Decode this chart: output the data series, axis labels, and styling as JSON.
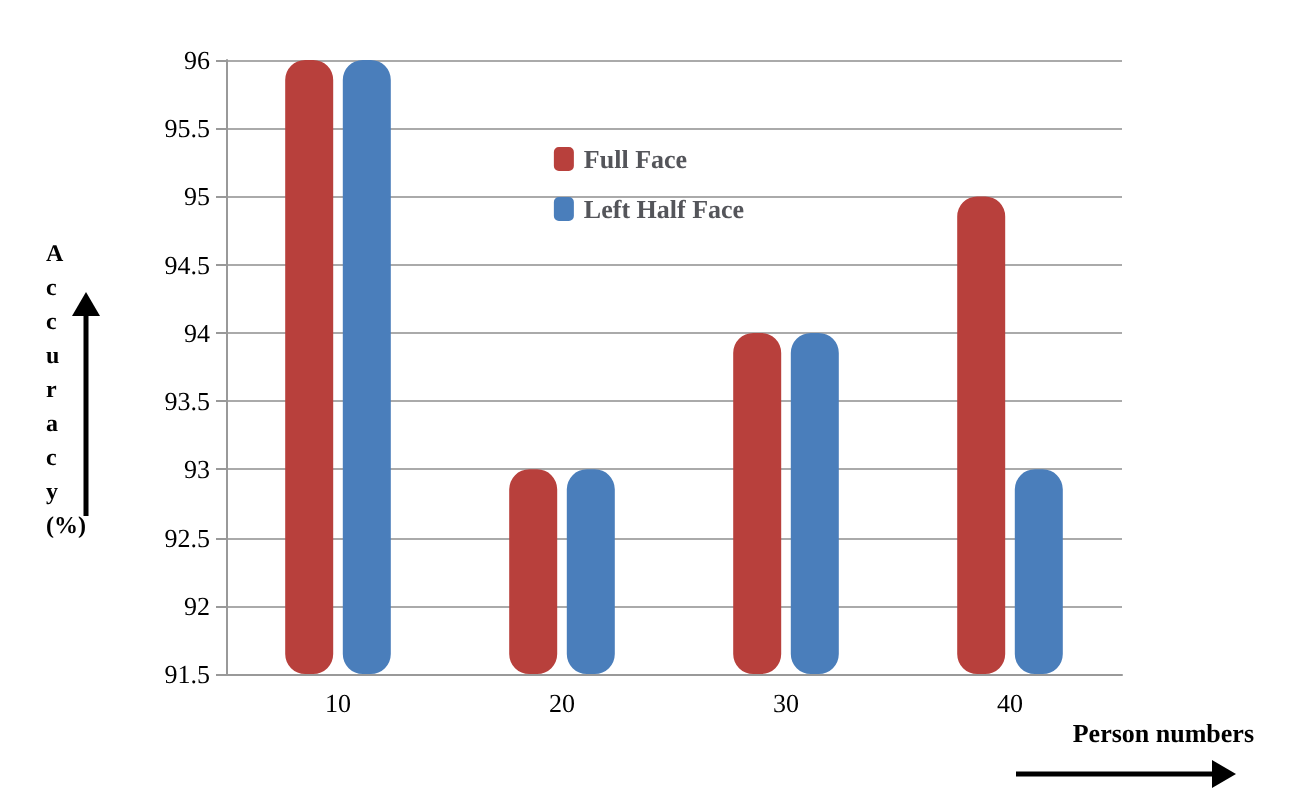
{
  "chart_data": {
    "type": "bar",
    "xlabel": "Person numbers",
    "ylabel": "Accuracy (%)",
    "categories": [
      "10",
      "20",
      "30",
      "40"
    ],
    "series": [
      {
        "name": "Full Face",
        "color": "#b8403c",
        "values": [
          96,
          93,
          94,
          95
        ]
      },
      {
        "name": "Left Half Face",
        "color": "#4a7ebb",
        "values": [
          96,
          93,
          94,
          93
        ]
      }
    ],
    "ylim": [
      91.5,
      96
    ],
    "yticks": [
      91.5,
      92,
      92.5,
      93,
      93.5,
      94,
      94.5,
      95,
      95.5,
      96
    ],
    "grid": "y",
    "legend": "top"
  }
}
